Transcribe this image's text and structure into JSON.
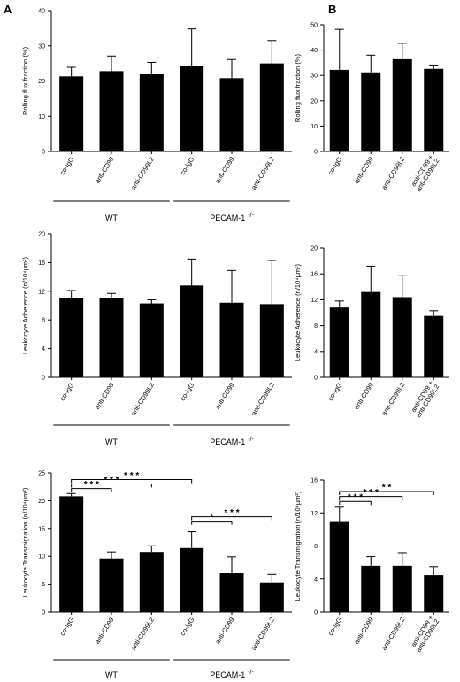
{
  "panel_labels": [
    "A",
    "B"
  ],
  "chart_data": [
    {
      "type": "bar",
      "panel": "A",
      "ylabel": "Rolling flux fraction (%)",
      "ylim": [
        0,
        40
      ],
      "yticks": [
        "0",
        "10",
        "20",
        "30",
        "40"
      ],
      "categories": [
        "co-IgG",
        "anti-CD99",
        "anti-CD99L2",
        "co-IgG",
        "anti-CD99",
        "anti-CD99L2"
      ],
      "values": [
        21.3,
        22.8,
        21.9,
        24.3,
        20.8,
        25.0
      ],
      "errors": [
        2.6,
        4.3,
        3.4,
        10.5,
        5.3,
        6.5
      ],
      "groups": [
        {
          "label": "WT",
          "label_sup": "",
          "start": 0,
          "end": 2
        },
        {
          "label": "PECAM-1",
          "label_sup": "-/-",
          "start": 3,
          "end": 5
        }
      ],
      "significance": []
    },
    {
      "type": "bar",
      "panel": "B",
      "ylabel": "Rolling flux fraction (%)",
      "ylim": [
        0,
        50
      ],
      "yticks": [
        "0",
        "10",
        "20",
        "30",
        "40",
        "50"
      ],
      "categories": [
        "co-IgG",
        "anti-CD99",
        "anti-CD99L2",
        "anti-CD99 +\nanti-CD99L2"
      ],
      "values": [
        32.2,
        31.2,
        36.4,
        32.6
      ],
      "errors": [
        16.0,
        6.8,
        6.3,
        1.5
      ],
      "groups": [],
      "significance": []
    },
    {
      "type": "bar",
      "panel": "A",
      "ylabel": "Leukocyte Adherence (n/10⁴µm²)",
      "ylim": [
        0,
        20
      ],
      "yticks": [
        "0",
        "4",
        "8",
        "12",
        "16",
        "20"
      ],
      "categories": [
        "co-IgG",
        "anti-CD99",
        "anti-CD99L2",
        "co-IgG",
        "anti-CD99",
        "anti-CD99L2"
      ],
      "values": [
        11.1,
        11.0,
        10.3,
        12.8,
        10.4,
        10.2
      ],
      "errors": [
        1.0,
        0.7,
        0.5,
        3.7,
        4.5,
        6.1
      ],
      "groups": [
        {
          "label": "WT",
          "label_sup": "",
          "start": 0,
          "end": 2
        },
        {
          "label": "PECAM-1",
          "label_sup": "-/-",
          "start": 3,
          "end": 5
        }
      ],
      "significance": []
    },
    {
      "type": "bar",
      "panel": "B",
      "ylabel": "Leukocyte Adherence (n/10⁴µm²)",
      "ylim": [
        0,
        20
      ],
      "yticks": [
        "0",
        "4",
        "8",
        "12",
        "16",
        "20"
      ],
      "categories": [
        "co-IgG",
        "anti-CD99",
        "anti-CD99L2",
        "anti-CD99 +\nanti-CD99L2"
      ],
      "values": [
        10.8,
        13.2,
        12.4,
        9.5
      ],
      "errors": [
        1.0,
        4.0,
        3.4,
        0.8
      ],
      "groups": [],
      "significance": []
    },
    {
      "type": "bar",
      "panel": "A",
      "ylabel": "Leukocyte Transmigration (n/10⁴µm²)",
      "ylim": [
        0,
        25
      ],
      "yticks": [
        "0",
        "5",
        "10",
        "15",
        "20",
        "25"
      ],
      "categories": [
        "co-IgG",
        "anti-CD99",
        "anti-CD99L2",
        "co-IgG",
        "anti-CD99",
        "anti-CD99L2"
      ],
      "values": [
        20.8,
        9.6,
        10.8,
        11.5,
        7.0,
        5.3
      ],
      "errors": [
        0.5,
        1.2,
        1.1,
        2.9,
        2.9,
        1.5
      ],
      "groups": [
        {
          "label": "WT",
          "label_sup": "",
          "start": 0,
          "end": 2
        },
        {
          "label": "PECAM-1",
          "label_sup": "-/-",
          "start": 3,
          "end": 5
        }
      ],
      "significance": [
        {
          "from": 0,
          "to": 1,
          "level": 22.2,
          "label": "* * *"
        },
        {
          "from": 0,
          "to": 2,
          "level": 23.0,
          "label": "* * *"
        },
        {
          "from": 0,
          "to": 3,
          "level": 23.8,
          "label": "* * *"
        },
        {
          "from": 3,
          "to": 4,
          "level": 16.3,
          "label": "*"
        },
        {
          "from": 3,
          "to": 5,
          "level": 17.1,
          "label": "* * *"
        }
      ]
    },
    {
      "type": "bar",
      "panel": "B",
      "ylabel": "Leukocyte Transmigration (n/10⁴µm²)",
      "ylim": [
        0,
        16
      ],
      "yticks": [
        "0",
        "4",
        "8",
        "12",
        "16"
      ],
      "categories": [
        "co-IgG",
        "anti-CD99",
        "anti-CD99L2",
        "anti-CD99 +\nanti-CD99L2"
      ],
      "values": [
        11.0,
        5.6,
        5.6,
        4.5
      ],
      "errors": [
        1.8,
        1.1,
        1.6,
        1.0
      ],
      "groups": [],
      "significance": [
        {
          "from": 0,
          "to": 1,
          "level": 13.4,
          "label": "* * *"
        },
        {
          "from": 0,
          "to": 2,
          "level": 14.0,
          "label": "* * *"
        },
        {
          "from": 0,
          "to": 3,
          "level": 14.6,
          "label": "* *"
        }
      ]
    }
  ]
}
